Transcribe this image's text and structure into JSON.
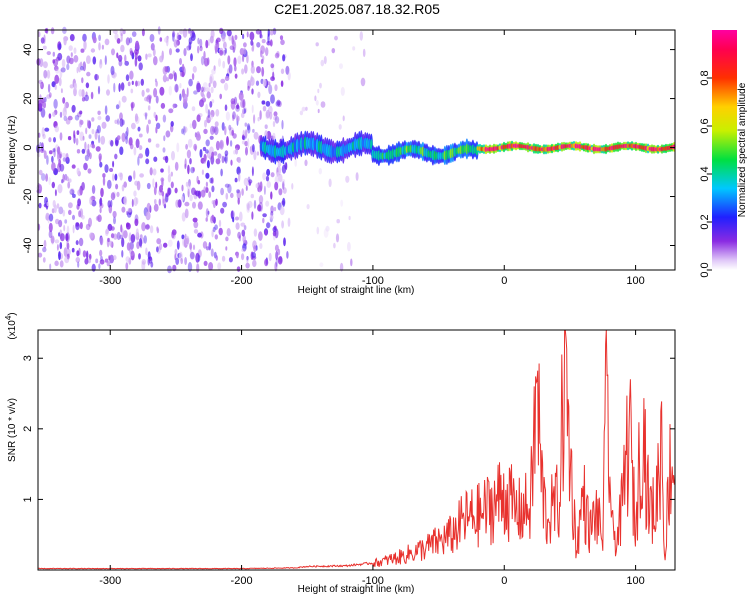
{
  "title": "C2E1.2025.087.18.32.R05",
  "colors": {
    "trace": "#e8322e",
    "background": "#ffffff",
    "axes": "#000000"
  },
  "chart_data": [
    {
      "type": "heatmap",
      "xlabel": "Height of straight line (km)",
      "ylabel": "Frequency (Hz)",
      "xlim": [
        -355,
        130
      ],
      "ylim": [
        -50,
        48
      ],
      "x_ticks": [
        -300,
        -200,
        -100,
        0,
        100
      ],
      "x_tick_labels": [
        "-300",
        "-200",
        "-100",
        "0",
        "100"
      ],
      "y_ticks": [
        -40,
        -20,
        0,
        20,
        40
      ],
      "y_tick_labels": [
        "-40",
        "-20",
        "0",
        "20",
        "40"
      ],
      "colorbar": {
        "label": "Normalized spectral amplitude",
        "range": [
          0,
          1
        ],
        "ticks": [
          0.0,
          0.2,
          0.4,
          0.6,
          0.8
        ],
        "tick_labels": [
          "0.0",
          "0.2",
          "0.4",
          "0.6",
          "0.8"
        ],
        "colormap": "rainbow (white-violet-blue-cyan-green-yellow-red-magenta)"
      },
      "regions": [
        {
          "x_range": [
            -355,
            -165
          ],
          "freq_range": [
            -50,
            48
          ],
          "amplitude": 0.12,
          "pattern": "scattered noise"
        },
        {
          "x_range": [
            -165,
            -105
          ],
          "freq_range": [
            -50,
            48
          ],
          "amplitude": 0.05,
          "pattern": "sparse noise"
        },
        {
          "x_range": [
            -185,
            -100
          ],
          "freq_center": 0,
          "half_width": 5,
          "amplitude": 0.35,
          "pattern": "band"
        },
        {
          "x_range": [
            -100,
            -20
          ],
          "freq_center": -2,
          "half_width": 4,
          "amplitude": 0.45,
          "pattern": "band"
        },
        {
          "x_range": [
            -20,
            130
          ],
          "freq_center": 0,
          "half_width": 2,
          "amplitude": 0.9,
          "pattern": "band"
        }
      ]
    },
    {
      "type": "line",
      "xlabel": "Height of straight line (km)",
      "ylabel": "SNR (10 * v/v)",
      "y_multiplier": "(x10⁴)",
      "y_multiplier_base": "(x10",
      "y_multiplier_exp": "4",
      "y_multiplier_close": ")",
      "xlim": [
        -355,
        130
      ],
      "ylim": [
        0,
        3.4
      ],
      "x_ticks": [
        -300,
        -200,
        -100,
        0,
        100
      ],
      "x_tick_labels": [
        "-300",
        "-200",
        "-100",
        "0",
        "100"
      ],
      "y_ticks": [
        1,
        2,
        3
      ],
      "y_tick_labels": [
        "1",
        "2",
        "3"
      ],
      "x": [
        -355,
        -300,
        -200,
        -160,
        -150,
        -120,
        -100,
        -80,
        -60,
        -40,
        -30,
        -20,
        -10,
        0,
        10,
        20,
        25,
        28,
        32,
        38,
        42,
        46,
        50,
        55,
        60,
        65,
        70,
        75,
        78,
        82,
        86,
        90,
        95,
        100,
        105,
        110,
        115,
        120,
        122,
        126,
        130
      ],
      "y": [
        0.02,
        0.02,
        0.02,
        0.03,
        0.05,
        0.06,
        0.1,
        0.2,
        0.35,
        0.55,
        0.8,
        0.85,
        1.0,
        1.2,
        0.9,
        1.0,
        2.9,
        1.5,
        0.8,
        1.0,
        1.1,
        3.4,
        1.8,
        0.3,
        1.2,
        0.6,
        0.9,
        0.5,
        2.9,
        0.6,
        0.5,
        1.0,
        2.3,
        0.6,
        2.5,
        1.0,
        0.9,
        2.2,
        0.15,
        1.6,
        1.7
      ]
    }
  ]
}
